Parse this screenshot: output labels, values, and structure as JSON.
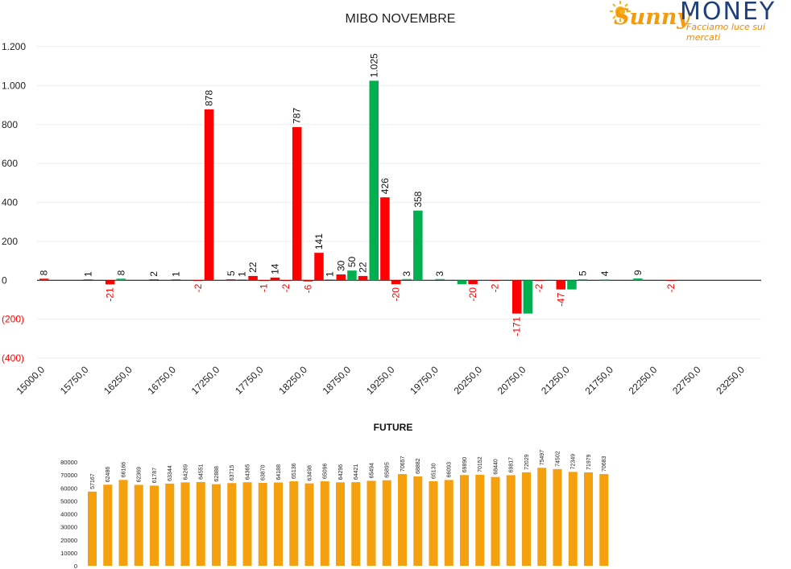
{
  "logo": {
    "brand_script": "Sunny",
    "brand_word": "MONEY",
    "tagline": "Facciamo luce sui mercati"
  },
  "colors": {
    "positive": "#00b050",
    "negative": "#ff0000",
    "future": "#f5a00f",
    "negative_label": "#ff0000"
  },
  "chart_data": [
    {
      "type": "bar",
      "title": "MIBO NOVEMBRE",
      "ylim": [
        -400,
        1200
      ],
      "y_ticks": [
        {
          "value": 1200,
          "label": "1.200"
        },
        {
          "value": 1000,
          "label": "1.000"
        },
        {
          "value": 800,
          "label": "800"
        },
        {
          "value": 600,
          "label": "600"
        },
        {
          "value": 400,
          "label": "400"
        },
        {
          "value": 200,
          "label": "200"
        },
        {
          "value": 0,
          "label": "0"
        },
        {
          "value": -200,
          "label": "(200)"
        },
        {
          "value": -400,
          "label": "(400)"
        }
      ],
      "x_tick_labels": [
        "15000,0",
        "15750,0",
        "16250,0",
        "16750,0",
        "17250,0",
        "17750,0",
        "18250,0",
        "18750,0",
        "19250,0",
        "19750,0",
        "20250,0",
        "20750,0",
        "21250,0",
        "21750,0",
        "22250,0",
        "22750,0",
        "23250,0"
      ],
      "grid": true,
      "series": [
        {
          "color": "red",
          "points": [
            {
              "slot": 0,
              "value": 8,
              "label": "8"
            },
            {
              "slot": 4,
              "value": 1,
              "label": "1"
            },
            {
              "slot": 6,
              "value": -21,
              "label": "-21"
            },
            {
              "slot": 10,
              "value": 2,
              "label": "2"
            },
            {
              "slot": 12,
              "value": 1,
              "label": "1"
            },
            {
              "slot": 14,
              "value": -2,
              "label": "-2"
            },
            {
              "slot": 15,
              "value": 878,
              "label": "878"
            },
            {
              "slot": 17,
              "value": 5,
              "label": "5"
            },
            {
              "slot": 19,
              "value": 22,
              "label": "22"
            },
            {
              "slot": 20,
              "value": -1,
              "label": "-1"
            },
            {
              "slot": 21,
              "value": 14,
              "label": "14"
            },
            {
              "slot": 22,
              "value": -2,
              "label": "-2"
            },
            {
              "slot": 23,
              "value": 787,
              "label": "787"
            },
            {
              "slot": 24,
              "value": -6,
              "label": "-6"
            },
            {
              "slot": 25,
              "value": 141,
              "label": "141"
            },
            {
              "slot": 27,
              "value": 30,
              "label": "30"
            },
            {
              "slot": 29,
              "value": 22,
              "label": "22"
            },
            {
              "slot": 31,
              "value": 426,
              "label": "426"
            },
            {
              "slot": 32,
              "value": -20,
              "label": "-20"
            },
            {
              "slot": 39,
              "value": -20,
              "label": "-20"
            },
            {
              "slot": 41,
              "value": -2,
              "label": "-2"
            },
            {
              "slot": 43,
              "value": -171,
              "label": "-171"
            },
            {
              "slot": 45,
              "value": -2,
              "label": "-2"
            },
            {
              "slot": 47,
              "value": -47,
              "label": "-47"
            },
            {
              "slot": 57,
              "value": -2,
              "label": "-2"
            }
          ]
        },
        {
          "color": "green",
          "points": [
            {
              "slot": 7,
              "value": 8,
              "label": "8"
            },
            {
              "slot": 18,
              "value": 1,
              "label": "1"
            },
            {
              "slot": 26,
              "value": 1,
              "label": "1"
            },
            {
              "slot": 28,
              "value": 50,
              "label": "50"
            },
            {
              "slot": 30,
              "value": 1025,
              "label": "1.025"
            },
            {
              "slot": 33,
              "value": 3,
              "label": "3"
            },
            {
              "slot": 34,
              "value": 358,
              "label": "358"
            },
            {
              "slot": 36,
              "value": 3,
              "label": "3"
            },
            {
              "slot": 38,
              "value": -20,
              "label": ""
            },
            {
              "slot": 44,
              "value": -171,
              "label": ""
            },
            {
              "slot": 48,
              "value": -47,
              "label": ""
            },
            {
              "slot": 49,
              "value": 5,
              "label": "5"
            },
            {
              "slot": 51,
              "value": 4,
              "label": "4"
            },
            {
              "slot": 54,
              "value": 9,
              "label": "9"
            }
          ]
        }
      ]
    },
    {
      "type": "bar",
      "title": "FUTURE",
      "ylim": [
        0,
        80000
      ],
      "y_ticks": [
        {
          "value": 80000,
          "label": "80000"
        },
        {
          "value": 70000,
          "label": "70000"
        },
        {
          "value": 60000,
          "label": "60000"
        },
        {
          "value": 50000,
          "label": "50000"
        },
        {
          "value": 40000,
          "label": "40000"
        },
        {
          "value": 30000,
          "label": "30000"
        },
        {
          "value": 20000,
          "label": "20000"
        },
        {
          "value": 10000,
          "label": "10000"
        },
        {
          "value": 0,
          "label": "0"
        }
      ],
      "values": [
        57167,
        62486,
        66166,
        62369,
        61787,
        63344,
        64269,
        64551,
        62888,
        63715,
        64365,
        63870,
        64188,
        65136,
        63498,
        65096,
        64296,
        64421,
        65494,
        65895,
        70657,
        68882,
        65130,
        66093,
        69890,
        70152,
        68440,
        69817,
        72029,
        75497,
        74502,
        72349,
        71979,
        70683
      ]
    }
  ]
}
